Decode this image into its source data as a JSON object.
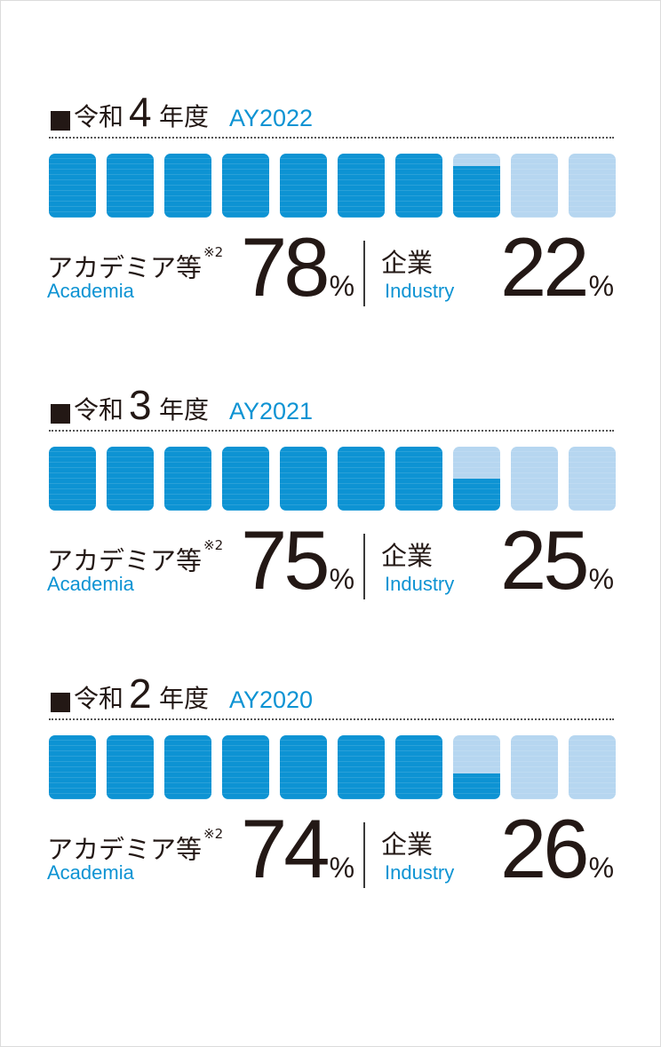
{
  "colors": {
    "academia": "#0d93d3",
    "industry": "#b6d6f0",
    "text": "#231815",
    "accent_text": "#0d93d3"
  },
  "labels": {
    "academia_jp": "アカデミア等",
    "academia_note": "※2",
    "academia_en": "Academia",
    "industry_jp": "企業",
    "industry_en": "Industry",
    "percent_sign": "%"
  },
  "chart_data": [
    {
      "type": "bar",
      "title_jp_prefix": "令和",
      "title_num": "4",
      "title_jp_suffix": "年度",
      "title_en": "AY2022",
      "categories": [
        "アカデミア等",
        "企業"
      ],
      "values": [
        78,
        22
      ],
      "units": "%",
      "blocks": 10
    },
    {
      "type": "bar",
      "title_jp_prefix": "令和",
      "title_num": "3",
      "title_jp_suffix": "年度",
      "title_en": "AY2021",
      "categories": [
        "アカデミア等",
        "企業"
      ],
      "values": [
        75,
        25
      ],
      "units": "%",
      "blocks": 10
    },
    {
      "type": "bar",
      "title_jp_prefix": "令和",
      "title_num": "2",
      "title_jp_suffix": "年度",
      "title_en": "AY2020",
      "categories": [
        "アカデミア等",
        "企業"
      ],
      "values": [
        74,
        26
      ],
      "units": "%",
      "blocks": 10
    }
  ]
}
